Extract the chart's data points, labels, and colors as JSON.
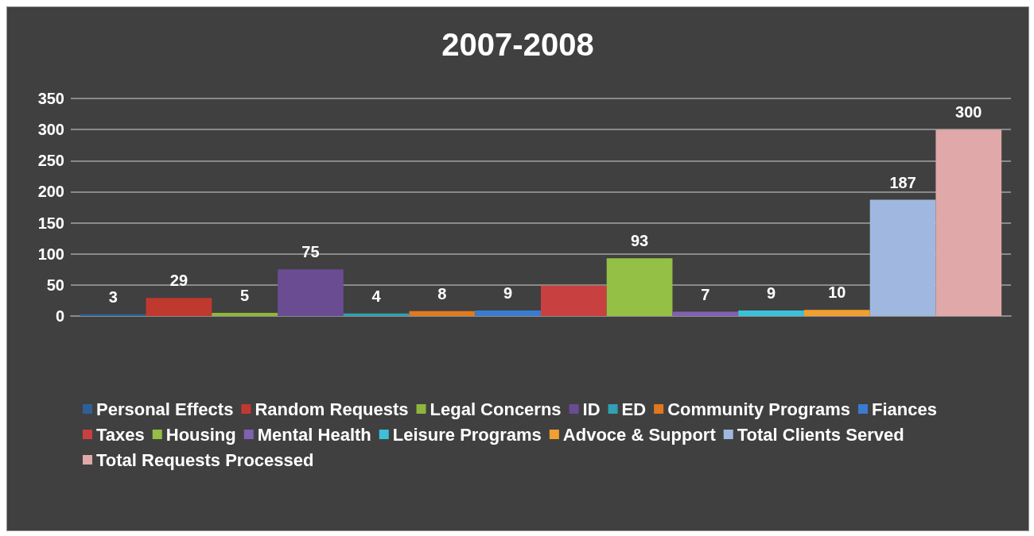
{
  "chart_data": {
    "type": "bar",
    "title": "2007-2008",
    "categories": [
      null
    ],
    "series": [
      {
        "name": "Personal Effects",
        "color": "#2f5f9a",
        "values": [
          3
        ],
        "value_labels": [
          "3"
        ]
      },
      {
        "name": "Random Requests",
        "color": "#c0392f",
        "values": [
          29
        ],
        "value_labels": [
          "29"
        ]
      },
      {
        "name": "Legal Concerns",
        "color": "#8fb63a",
        "values": [
          5
        ],
        "value_labels": [
          "5"
        ]
      },
      {
        "name": "ID",
        "color": "#6a4c93",
        "values": [
          75
        ],
        "value_labels": [
          "75"
        ]
      },
      {
        "name": "ED",
        "color": "#31a0b4",
        "values": [
          4
        ],
        "value_labels": [
          "4"
        ]
      },
      {
        "name": "Community Programs",
        "color": "#e0791f",
        "values": [
          8
        ],
        "value_labels": [
          "8"
        ]
      },
      {
        "name": "Fiances",
        "color": "#3a7bd0",
        "values": [
          9
        ],
        "value_labels": [
          "9"
        ]
      },
      {
        "name": "Taxes",
        "color": "#c94040",
        "values": [
          49
        ],
        "value_labels": [
          null
        ]
      },
      {
        "name": "Housing",
        "color": "#94c045",
        "values": [
          93
        ],
        "value_labels": [
          "93"
        ]
      },
      {
        "name": "Mental Health",
        "color": "#8060b0",
        "values": [
          7
        ],
        "value_labels": [
          "7"
        ]
      },
      {
        "name": "Leisure Programs",
        "color": "#3cc0d8",
        "values": [
          9
        ],
        "value_labels": [
          "9"
        ]
      },
      {
        "name": "Advoce & Support",
        "color": "#f0a030",
        "values": [
          10
        ],
        "value_labels": [
          "10"
        ]
      },
      {
        "name": "Total Clients Served",
        "color": "#a0b8e0",
        "values": [
          187
        ],
        "value_labels": [
          "187"
        ]
      },
      {
        "name": "Total Requests Processed",
        "color": "#e0a8a8",
        "values": [
          300
        ],
        "value_labels": [
          "300"
        ]
      }
    ],
    "ylim": [
      0,
      350
    ],
    "yticks": [
      0,
      50,
      100,
      150,
      200,
      250,
      300,
      350
    ],
    "grid": "y",
    "legend": "bottom"
  }
}
